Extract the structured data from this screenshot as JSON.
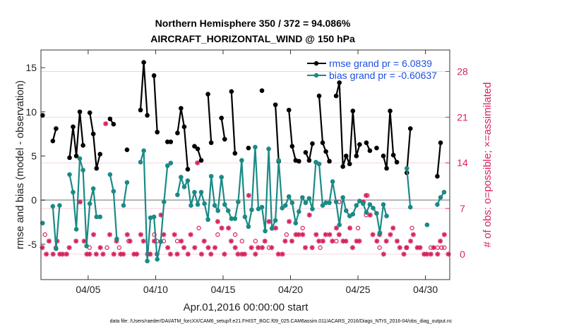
{
  "chart_data": {
    "type": "line",
    "title": "Northern Hemisphere 350 / 372 = 94.086%",
    "subtitle": "AIRCRAFT_HORIZONTAL_WIND @ 150 hPa",
    "xlabel": "Apr.01,2016 00:00:00 start",
    "ylabel": "rmse and bias (model - observation)",
    "y2label": "# of obs: o=possible; ×=assimilated",
    "footer": "data file: /Users/raeder/DAI/ATM_forcXX/CAM6_setup/f.e21.FHIST_BGC.f09_025.CAM6assim.011/ACARS_2016/Diags_NTrS_2016-04/obs_diag_output.nc",
    "xlim": [
      0.5,
      30.8
    ],
    "ylim": [
      -9,
      17
    ],
    "y2lim": [
      -3.9,
      31.3
    ],
    "x_ticks": [
      4,
      9,
      14,
      19,
      24,
      29
    ],
    "x_tick_labels": [
      "04/05",
      "04/10",
      "04/15",
      "04/20",
      "04/25",
      "04/30"
    ],
    "y_ticks": [
      -5,
      0,
      5,
      10,
      15
    ],
    "y_tick_labels": [
      "-5",
      "0",
      "5",
      "10",
      "15"
    ],
    "y2_ticks": [
      0,
      7,
      14,
      21,
      28
    ],
    "y2_tick_labels": [
      "0",
      "7",
      "14",
      "21",
      "28"
    ],
    "grid": true,
    "legend_position": "top-right",
    "zero_line": true,
    "series": [
      {
        "name": "rmse grand pr = 6.0839",
        "color": "#000000",
        "points": [
          [
            0.62,
            9.6
          ],
          null,
          [
            1.38,
            6.7
          ],
          [
            1.62,
            8.1
          ],
          null,
          [
            2.62,
            4.8
          ],
          [
            2.88,
            8.3
          ],
          [
            3.12,
            5.0
          ],
          [
            3.38,
            10.0
          ],
          [
            3.62,
            6.2
          ],
          null,
          [
            4.12,
            9.9
          ],
          [
            4.38,
            7.5
          ],
          [
            4.62,
            3.6
          ],
          [
            4.88,
            5.2
          ],
          null,
          [
            5.62,
            9.2
          ],
          [
            5.88,
            8.6
          ],
          null,
          [
            6.88,
            5.7
          ],
          null,
          [
            7.88,
            10.2
          ],
          [
            8.12,
            15.6
          ],
          [
            8.38,
            9.6
          ],
          null,
          [
            8.88,
            14.1
          ],
          [
            9.12,
            7.7
          ],
          null,
          [
            9.88,
            6.6
          ],
          [
            10.12,
            6.6
          ],
          null,
          [
            10.62,
            7.6
          ],
          [
            10.88,
            10.4
          ],
          [
            11.12,
            8.3
          ],
          [
            11.38,
            3.5
          ],
          null,
          [
            11.88,
            6.1
          ],
          [
            12.12,
            5.8
          ],
          [
            12.38,
            4.5
          ],
          null,
          [
            12.88,
            12.0
          ],
          [
            13.12,
            6.5
          ],
          null,
          [
            13.88,
            9.3
          ],
          [
            14.12,
            6.9
          ],
          null,
          [
            14.62,
            12.3
          ],
          [
            14.88,
            5.3
          ],
          null,
          [
            15.88,
            5.9
          ],
          null,
          [
            16.88,
            12.4
          ],
          null,
          [
            17.88,
            10.8
          ],
          [
            18.12,
            4.4
          ],
          null,
          [
            18.88,
            10.2
          ],
          [
            19.12,
            6.1
          ],
          [
            19.38,
            4.5
          ],
          [
            19.62,
            4.4
          ],
          null,
          [
            20.12,
            5.4
          ],
          [
            20.38,
            4.5
          ],
          [
            20.62,
            6.4
          ],
          null,
          [
            21.12,
            11.8
          ],
          [
            21.38,
            6.5
          ],
          [
            21.62,
            5.5
          ],
          [
            21.88,
            4.4
          ],
          null,
          [
            22.38,
            11.8
          ],
          [
            22.62,
            13.3
          ],
          [
            22.88,
            3.8
          ],
          [
            23.12,
            5.0
          ],
          [
            23.38,
            4.1
          ],
          [
            23.62,
            10.1
          ],
          [
            23.88,
            5.0
          ],
          [
            24.12,
            6.3
          ],
          null,
          [
            24.62,
            6.5
          ],
          [
            24.88,
            5.6
          ],
          null,
          [
            25.38,
            5.9
          ],
          null,
          [
            25.88,
            5.0
          ],
          [
            26.12,
            3.6
          ],
          [
            26.38,
            10.1
          ],
          [
            26.62,
            5.1
          ],
          [
            26.88,
            4.3
          ],
          null,
          [
            27.62,
            3.1
          ],
          [
            27.88,
            8.1
          ],
          null,
          [
            29.88,
            2.7
          ],
          [
            30.12,
            6.5
          ]
        ]
      },
      {
        "name": "bias grand pr = -0.60637",
        "color": "#1a8a86",
        "points": [
          [
            0.62,
            -2.6
          ],
          null,
          [
            1.38,
            -0.7
          ],
          [
            1.62,
            -5.5
          ],
          [
            1.88,
            -0.6
          ],
          null,
          [
            2.62,
            2.9
          ],
          [
            2.88,
            0.9
          ],
          [
            3.12,
            -3.3
          ],
          [
            3.38,
            4.7
          ],
          [
            3.62,
            3.4
          ],
          [
            3.88,
            -5.2
          ],
          [
            4.12,
            -0.4
          ],
          [
            4.38,
            1.3
          ],
          [
            4.62,
            -1.9
          ],
          [
            4.88,
            -1.9
          ],
          null,
          [
            5.62,
            2.9
          ],
          [
            5.88,
            1.0
          ],
          [
            6.12,
            -4.4
          ],
          null,
          [
            6.62,
            -0.6
          ],
          [
            6.88,
            2.0
          ],
          null,
          [
            7.88,
            4.3
          ],
          [
            8.12,
            5.6
          ],
          [
            8.38,
            -6.9
          ],
          [
            8.62,
            -2.0
          ],
          [
            8.88,
            -1.9
          ],
          [
            9.12,
            -6.7
          ],
          [
            9.38,
            -4.7
          ],
          [
            9.62,
            -0.2
          ],
          [
            9.88,
            3.9
          ],
          [
            10.12,
            4.2
          ],
          null,
          [
            10.62,
            0.6
          ],
          [
            10.88,
            2.6
          ],
          [
            11.12,
            1.5
          ],
          [
            11.38,
            2.2
          ],
          [
            11.62,
            -0.6
          ],
          [
            11.88,
            0.9
          ],
          [
            12.12,
            -0.5
          ],
          [
            12.38,
            0.9
          ],
          [
            12.62,
            -0.4
          ],
          [
            12.88,
            -2.2
          ],
          [
            13.12,
            2.7
          ],
          [
            13.38,
            -0.6
          ],
          [
            13.62,
            -1.2
          ],
          [
            13.88,
            2.6
          ],
          [
            14.12,
            -0.5
          ],
          [
            14.38,
            -1.2
          ],
          [
            14.62,
            -2.1
          ],
          [
            14.88,
            -2.1
          ],
          [
            15.12,
            -0.2
          ],
          [
            15.38,
            4.5
          ],
          [
            15.62,
            -1.9
          ],
          [
            15.88,
            -3.0
          ],
          [
            16.12,
            -1.1
          ],
          [
            16.38,
            6.0
          ],
          [
            16.62,
            -1.0
          ],
          [
            16.88,
            -0.8
          ],
          [
            17.12,
            -3.5
          ],
          [
            17.38,
            5.8
          ],
          [
            17.62,
            -3.2
          ],
          [
            17.88,
            -2.3
          ],
          [
            18.12,
            4.5
          ],
          [
            18.38,
            -0.9
          ],
          [
            18.62,
            -0.6
          ],
          [
            18.88,
            0.4
          ],
          [
            19.12,
            -0.3
          ],
          [
            19.38,
            -2.6
          ],
          [
            19.62,
            -1.3
          ],
          [
            19.88,
            0.3
          ],
          [
            20.12,
            -0.3
          ],
          [
            20.38,
            0.2
          ],
          [
            20.62,
            -1.0
          ],
          [
            20.88,
            4.3
          ],
          [
            21.12,
            4.1
          ],
          [
            21.38,
            -0.6
          ],
          [
            21.62,
            -0.3
          ],
          [
            21.88,
            -0.3
          ],
          [
            22.12,
            2.1
          ],
          [
            22.38,
            -0.2
          ],
          [
            22.62,
            -2.8
          ],
          [
            22.88,
            0.3
          ],
          [
            23.12,
            -1.2
          ],
          [
            23.38,
            -1.8
          ],
          [
            23.62,
            -1.6
          ],
          [
            23.88,
            -0.6
          ],
          [
            24.12,
            -0.1
          ],
          [
            24.38,
            -0.4
          ],
          [
            24.62,
            -1.4
          ],
          [
            24.88,
            -0.5
          ],
          [
            25.12,
            -0.9
          ],
          [
            25.38,
            -1.5
          ],
          [
            25.62,
            -3.7
          ],
          [
            25.88,
            -0.5
          ],
          [
            26.12,
            -1.8
          ],
          null,
          [
            27.62,
            3.6
          ],
          [
            27.88,
            -0.8
          ],
          null,
          [
            29.12,
            -2.8
          ],
          null,
          [
            29.88,
            -0.5
          ],
          [
            30.12,
            0.3
          ],
          [
            30.38,
            0.9
          ]
        ]
      }
    ],
    "obs_possible_markers": [
      [
        1.6,
        1
      ],
      [
        6.3,
        1
      ],
      [
        7.0,
        2
      ],
      [
        8.9,
        3
      ],
      [
        9.1,
        2
      ],
      [
        10.6,
        2
      ],
      [
        13.6,
        3
      ],
      [
        14.9,
        3
      ],
      [
        15.4,
        2
      ],
      [
        16.4,
        2
      ],
      [
        17.4,
        1
      ],
      [
        18.7,
        3
      ],
      [
        21.2,
        1
      ],
      [
        22.4,
        2
      ],
      [
        24.0,
        4
      ],
      [
        24.6,
        6
      ],
      [
        25.6,
        1
      ],
      [
        27.6,
        1
      ],
      [
        29.4,
        1
      ],
      [
        29.9,
        1
      ],
      [
        30.2,
        1
      ],
      [
        30.4,
        1
      ],
      [
        0.8,
        3
      ],
      [
        4.1,
        1
      ],
      [
        5.4,
        1
      ],
      [
        22.6,
        8
      ],
      [
        24.7,
        9
      ],
      [
        28.0,
        4
      ],
      [
        12.2,
        4
      ],
      [
        19.9,
        4
      ],
      [
        9.6,
        2
      ]
    ],
    "obs_assimilated_markers": [
      [
        0.6,
        1
      ],
      [
        0.9,
        0
      ],
      [
        1.1,
        2
      ],
      [
        1.4,
        0
      ],
      [
        1.7,
        2
      ],
      [
        1.9,
        0
      ],
      [
        2.1,
        0
      ],
      [
        2.4,
        0
      ],
      [
        2.6,
        1
      ],
      [
        3.1,
        2
      ],
      [
        3.4,
        8
      ],
      [
        3.7,
        2
      ],
      [
        3.9,
        0
      ],
      [
        4.1,
        0
      ],
      [
        4.4,
        3
      ],
      [
        4.6,
        0
      ],
      [
        4.9,
        1
      ],
      [
        5.1,
        0
      ],
      [
        5.3,
        20
      ],
      [
        5.6,
        3
      ],
      [
        5.9,
        0
      ],
      [
        6.1,
        2
      ],
      [
        6.4,
        0
      ],
      [
        6.6,
        0
      ],
      [
        6.9,
        3
      ],
      [
        7.1,
        2
      ],
      [
        7.4,
        0
      ],
      [
        7.6,
        0
      ],
      [
        7.9,
        3
      ],
      [
        8.1,
        2
      ],
      [
        8.4,
        0
      ],
      [
        8.6,
        0
      ],
      [
        8.9,
        2
      ],
      [
        9.1,
        0
      ],
      [
        9.4,
        6
      ],
      [
        9.6,
        3
      ],
      [
        9.9,
        1
      ],
      [
        10.1,
        0
      ],
      [
        10.4,
        3
      ],
      [
        10.6,
        0
      ],
      [
        10.9,
        2
      ],
      [
        11.1,
        1
      ],
      [
        11.4,
        0
      ],
      [
        11.6,
        3
      ],
      [
        11.9,
        1
      ],
      [
        12.1,
        14
      ],
      [
        12.4,
        0
      ],
      [
        12.6,
        2
      ],
      [
        12.9,
        1
      ],
      [
        13.1,
        0
      ],
      [
        13.4,
        1
      ],
      [
        13.6,
        5
      ],
      [
        13.9,
        4
      ],
      [
        14.1,
        0
      ],
      [
        14.4,
        4
      ],
      [
        14.6,
        2
      ],
      [
        14.9,
        1
      ],
      [
        15.1,
        0
      ],
      [
        15.4,
        0
      ],
      [
        15.6,
        0
      ],
      [
        15.9,
        9
      ],
      [
        16.1,
        1
      ],
      [
        16.4,
        0
      ],
      [
        16.6,
        1
      ],
      [
        16.9,
        1
      ],
      [
        17.1,
        2
      ],
      [
        17.4,
        5
      ],
      [
        17.6,
        1
      ],
      [
        17.9,
        4
      ],
      [
        18.1,
        0
      ],
      [
        18.4,
        0
      ],
      [
        18.6,
        2
      ],
      [
        18.9,
        5
      ],
      [
        19.1,
        2
      ],
      [
        19.4,
        3
      ],
      [
        19.6,
        3
      ],
      [
        19.9,
        3
      ],
      [
        20.1,
        1
      ],
      [
        20.4,
        6
      ],
      [
        20.6,
        1
      ],
      [
        20.9,
        3
      ],
      [
        21.1,
        2
      ],
      [
        21.4,
        2
      ],
      [
        21.6,
        3
      ],
      [
        21.9,
        3
      ],
      [
        22.1,
        2
      ],
      [
        22.4,
        4
      ],
      [
        22.6,
        3
      ],
      [
        22.9,
        2
      ],
      [
        23.1,
        2
      ],
      [
        23.4,
        4
      ],
      [
        23.6,
        1
      ],
      [
        23.9,
        2
      ],
      [
        24.1,
        2
      ],
      [
        24.4,
        8
      ],
      [
        24.6,
        9
      ],
      [
        24.9,
        6
      ],
      [
        25.1,
        3
      ],
      [
        25.4,
        2
      ],
      [
        25.6,
        3
      ],
      [
        25.9,
        0
      ],
      [
        26.1,
        2
      ],
      [
        26.4,
        3
      ],
      [
        26.6,
        4
      ],
      [
        26.9,
        2
      ],
      [
        27.1,
        1
      ],
      [
        27.4,
        0
      ],
      [
        27.6,
        1
      ],
      [
        27.9,
        2
      ],
      [
        28.1,
        3
      ],
      [
        28.4,
        1
      ],
      [
        28.6,
        1
      ],
      [
        28.9,
        0
      ],
      [
        29.1,
        0
      ],
      [
        29.4,
        0
      ],
      [
        29.6,
        1
      ],
      [
        29.9,
        0
      ],
      [
        30.1,
        2
      ],
      [
        30.4,
        3
      ],
      [
        30.7,
        0
      ]
    ]
  }
}
